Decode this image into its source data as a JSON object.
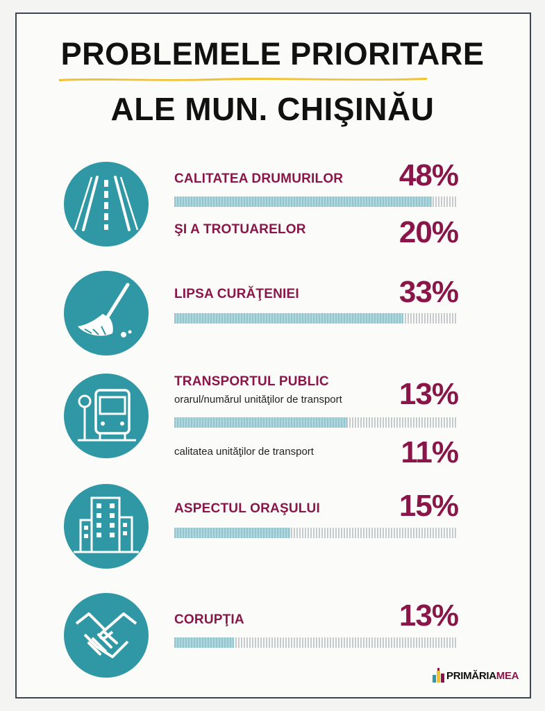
{
  "header": {
    "title_line1": "PROBLEMELE PRIORITARE",
    "title_line2": "ALE MUN. CHIŞINĂU"
  },
  "colors": {
    "accent": "#8a1649",
    "icon_background": "#2f98a4",
    "bar_fill": "#92c6d0",
    "underline": "#f2c12e"
  },
  "items": [
    {
      "label": "CALITATEA DRUMURILOR",
      "value_text": "48%",
      "icon": "road-icon"
    },
    {
      "label": "ŞI A TROTUARELOR",
      "value_text": "20%",
      "icon": "road-icon"
    },
    {
      "label": "LIPSA CURĂŢENIEI",
      "value_text": "33%",
      "icon": "broom-icon"
    },
    {
      "label": "TRANSPORTUL PUBLIC",
      "sublabel": "orarul/numărul unităţilor de transport",
      "value_text": "13%",
      "icon": "bus-icon"
    },
    {
      "sublabel": "calitatea unităţilor de transport",
      "value_text": "11%",
      "icon": "bus-icon"
    },
    {
      "label": "ASPECTUL ORAŞULUI",
      "value_text": "15%",
      "icon": "building-icon"
    },
    {
      "label": "CORUPŢIA",
      "value_text": "13%",
      "icon": "handshake-icon"
    }
  ],
  "chart_data": {
    "type": "bar",
    "title": "PROBLEMELE PRIORITARE ALE MUN. CHIŞINĂU",
    "categories": [
      "CALITATEA DRUMURILOR",
      "LIPSA CURĂŢENIEI",
      "TRANSPORTUL PUBLIC",
      "ASPECTUL ORAŞULUI",
      "CORUPŢIA"
    ],
    "bar_fill_fractions": [
      0.91,
      0.81,
      0.61,
      0.41,
      0.21
    ],
    "values": [
      {
        "category": "CALITATEA DRUMURILOR",
        "value": 48
      },
      {
        "category": "ŞI A TROTUARELOR",
        "value": 20
      },
      {
        "category": "LIPSA CURĂŢENIEI",
        "value": 33
      },
      {
        "category": "orarul/numărul unităţilor de transport",
        "value": 13
      },
      {
        "category": "calitatea unităţilor de transport",
        "value": 11
      },
      {
        "category": "ASPECTUL ORAŞULUI",
        "value": 15
      },
      {
        "category": "CORUPŢIA",
        "value": 13
      }
    ],
    "unit": "%",
    "grid": false,
    "legend": "none"
  },
  "footer": {
    "logo_part1": "PRIMĂRIA",
    "logo_part2": "MEA"
  }
}
